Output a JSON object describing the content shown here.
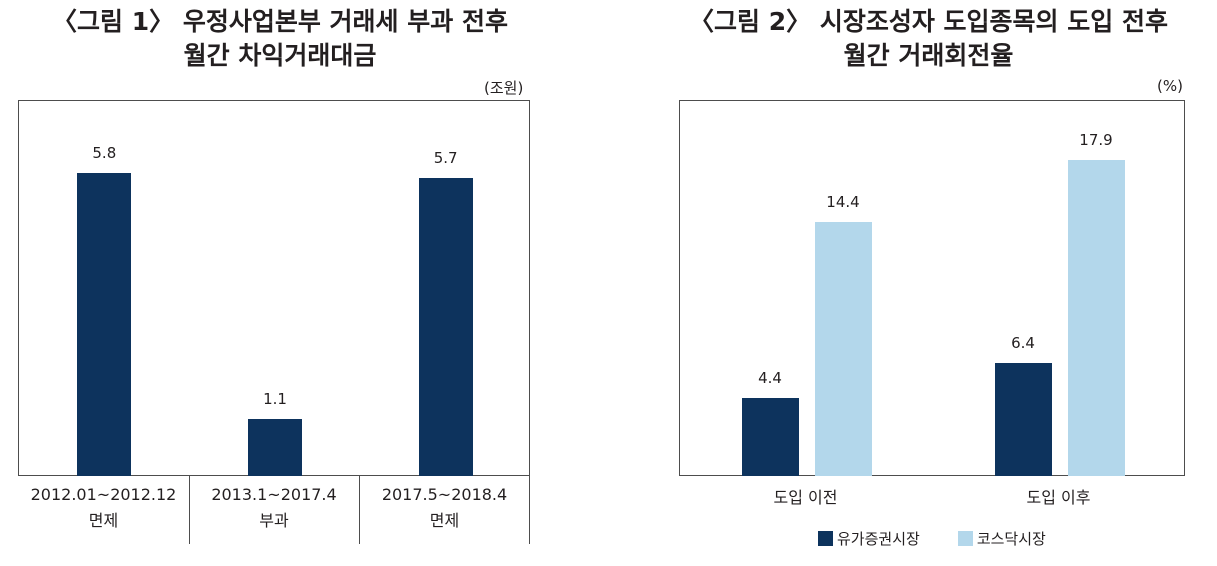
{
  "figures": [
    {
      "title_line1": "〈그림 1〉 우정사업본부 거래세 부과 전후",
      "title_line2": "월간 차익거래대금",
      "unit": "(조원)"
    },
    {
      "title_line1": "〈그림 2〉 시장조성자 도입종목의 도입 전후",
      "title_line2": "월간 거래회전율",
      "unit": "(%)"
    }
  ],
  "chart_data": [
    {
      "type": "bar",
      "categories": [
        {
          "line1": "2012.01~2012.12",
          "line2": "면제"
        },
        {
          "line1": "2013.1~2017.4",
          "line2": "부과"
        },
        {
          "line1": "2017.5~2018.4",
          "line2": "면제"
        }
      ],
      "values": [
        5.8,
        1.1,
        5.7
      ],
      "value_labels": [
        "5.8",
        "1.1",
        "5.7"
      ],
      "ylim": [
        0,
        7.2
      ],
      "grid": false,
      "colors": {
        "bar": "#0d335d"
      }
    },
    {
      "type": "bar",
      "categories": [
        "도입 이전",
        "도입 이후"
      ],
      "series": [
        {
          "name": "유가증권시장",
          "values": [
            4.4,
            6.4
          ],
          "labels": [
            "4.4",
            "6.4"
          ],
          "color": "#0d335d"
        },
        {
          "name": "코스닥시장",
          "values": [
            14.4,
            17.9
          ],
          "labels": [
            "14.4",
            "17.9"
          ],
          "color": "#b3d7eb"
        }
      ],
      "ylim": [
        0,
        21.3
      ],
      "grid": false,
      "legend": "bottom-center"
    }
  ]
}
